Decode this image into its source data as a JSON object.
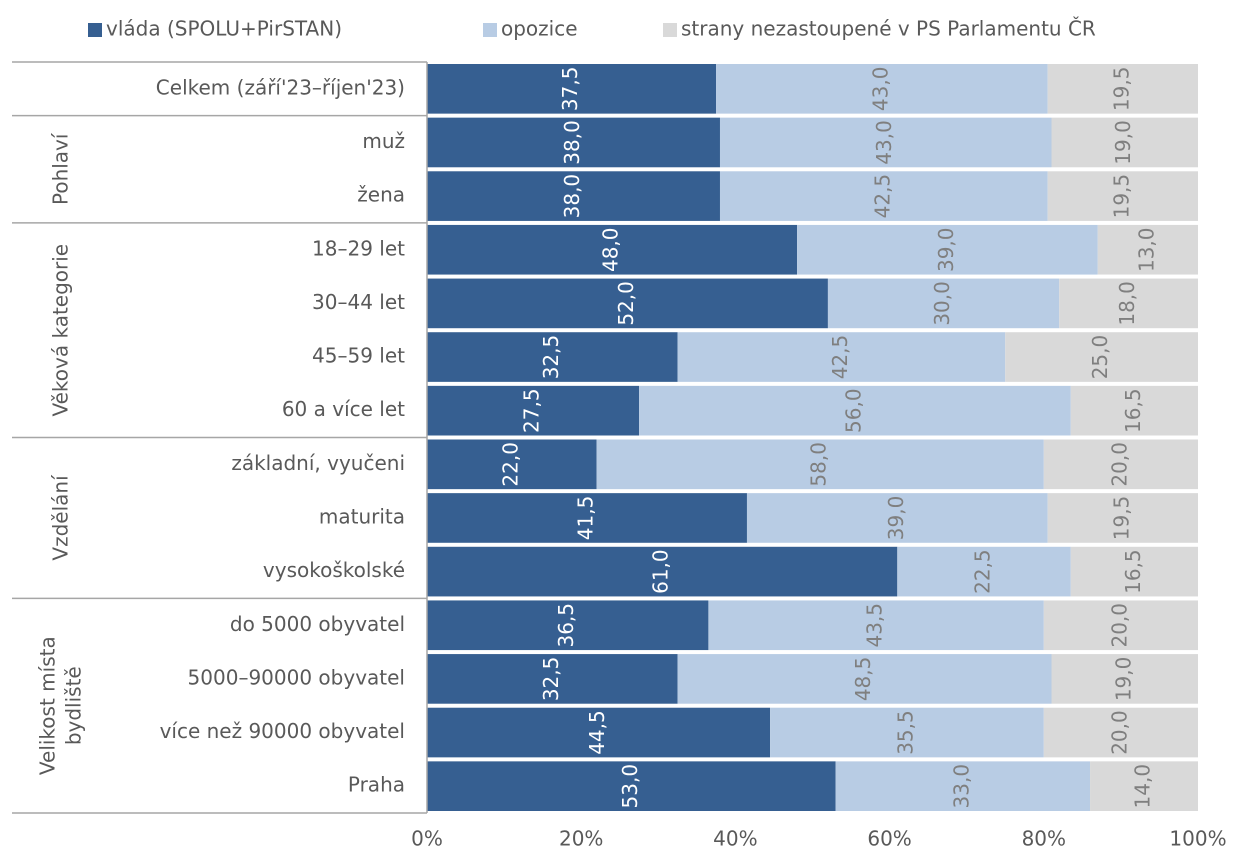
{
  "chart_data": {
    "type": "stacked_barh",
    "categories": [
      "Celkem (září'23–říjen'23)",
      "muž",
      "žena",
      "18–29 let",
      "30–44 let",
      "45–59 let",
      "60 a více let",
      "základní, vyučeni",
      "maturita",
      "vysokoškolské",
      "do 5000 obyvatel",
      "5000–90000 obyvatel",
      "více než 90000 obyvatel",
      "Praha"
    ],
    "groups": [
      {
        "name": [
          "Pohlaví"
        ],
        "span": 2
      },
      {
        "name": [
          "Věková kategorie"
        ],
        "span": 4
      },
      {
        "name": [
          "Vzdělání"
        ],
        "span": 3
      },
      {
        "name": [
          "Velikost místa",
          "bydliště"
        ],
        "span": 4
      }
    ],
    "series": [
      {
        "name": "vláda (SPOLU+PirSTAN)",
        "color": "#365f91",
        "label_color": "#ffffff",
        "values": [
          37.5,
          38.0,
          38.0,
          48.0,
          52.0,
          32.5,
          27.5,
          22.0,
          41.5,
          61.0,
          36.5,
          32.5,
          44.5,
          53.0
        ],
        "value_labels": [
          "37,5",
          "38,0",
          "38,0",
          "48,0",
          "52,0",
          "32,5",
          "27,5",
          "22,0",
          "41,5",
          "61,0",
          "36,5",
          "32,5",
          "44,5",
          "53,0"
        ]
      },
      {
        "name": "opozice",
        "color": "#b8cce4",
        "label_color": "#7f7f7f",
        "values": [
          43.0,
          43.0,
          42.5,
          39.0,
          30.0,
          42.5,
          56.0,
          58.0,
          39.0,
          22.5,
          43.5,
          48.5,
          35.5,
          33.0
        ],
        "value_labels": [
          "43,0",
          "43,0",
          "42,5",
          "39,0",
          "30,0",
          "42,5",
          "56,0",
          "58,0",
          "39,0",
          "22,5",
          "43,5",
          "48,5",
          "35,5",
          "33,0"
        ]
      },
      {
        "name": "strany nezastoupené v PS Parlamentu ČR",
        "color": "#d9d9d9",
        "label_color": "#7f7f7f",
        "values": [
          19.5,
          19.0,
          19.5,
          13.0,
          18.0,
          25.0,
          16.5,
          20.0,
          19.5,
          16.5,
          20.0,
          19.0,
          20.0,
          14.0
        ],
        "value_labels": [
          "19,5",
          "19,0",
          "19,5",
          "13,0",
          "18,0",
          "25,0",
          "16,5",
          "20,0",
          "19,5",
          "16,5",
          "20,0",
          "19,0",
          "20,0",
          "14,0"
        ]
      }
    ],
    "xlim": [
      0,
      100
    ],
    "xticks": [
      {
        "value": 0,
        "label": "0%"
      },
      {
        "value": 20,
        "label": "20%"
      },
      {
        "value": 40,
        "label": "40%"
      },
      {
        "value": 60,
        "label": "60%"
      },
      {
        "value": 80,
        "label": "80%"
      },
      {
        "value": 100,
        "label": "100%"
      }
    ],
    "legend": "top"
  }
}
